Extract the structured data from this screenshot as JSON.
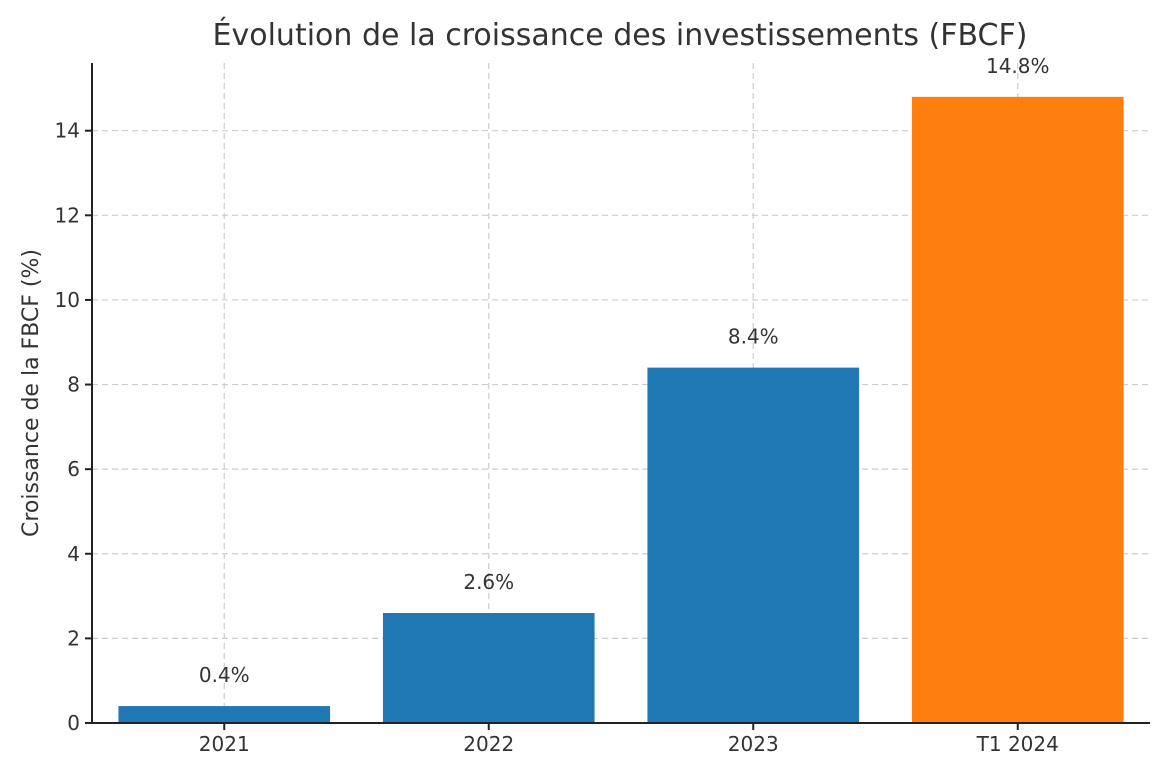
{
  "chart_data": {
    "type": "bar",
    "title": "Évolution de la croissance des investissements (FBCF)",
    "xlabel": "",
    "ylabel": "Croissance de la FBCF (%)",
    "categories": [
      "2021",
      "2022",
      "2023",
      "T1 2024"
    ],
    "values": [
      0.4,
      2.6,
      8.4,
      14.8
    ],
    "data_labels": [
      "0.4%",
      "2.6%",
      "8.4%",
      "14.8%"
    ],
    "colors": [
      "#1f77b4",
      "#1f77b4",
      "#1f77b4",
      "#ff7f0e"
    ],
    "ylim": [
      0,
      15.6
    ],
    "yticks": [
      0,
      2,
      4,
      6,
      8,
      10,
      12,
      14
    ],
    "grid": true,
    "legend": "none"
  }
}
